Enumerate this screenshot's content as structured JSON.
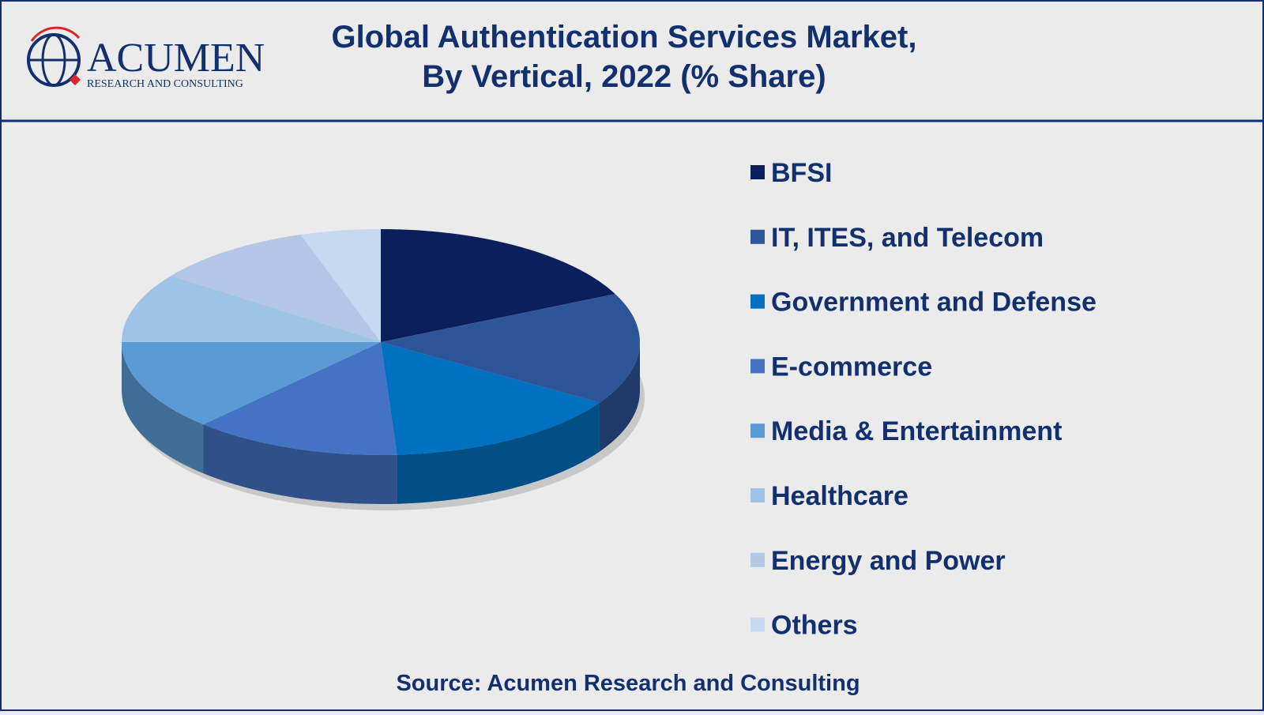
{
  "logo": {
    "name": "ACUMEN",
    "tagline": "RESEARCH AND CONSULTING"
  },
  "chart_data": {
    "type": "pie",
    "title": [
      "Global Authentication Services Market,",
      "By Vertical, 2022 (% Share)"
    ],
    "categories": [
      "BFSI",
      "IT, ITES, and Telecom",
      "Government and Defense",
      "E-commerce",
      "Media & Entertainment",
      "Healthcare",
      "Energy and Power",
      "Others"
    ],
    "values": [
      18,
      16,
      15,
      13,
      13,
      10,
      10,
      5
    ],
    "colors": [
      "#0b1f5c",
      "#2e5597",
      "#0070c0",
      "#4472c4",
      "#5b9bd5",
      "#9dc3e6",
      "#b4c7e7",
      "#c5d9f1"
    ],
    "source": "Source: Acumen Research and Consulting"
  }
}
